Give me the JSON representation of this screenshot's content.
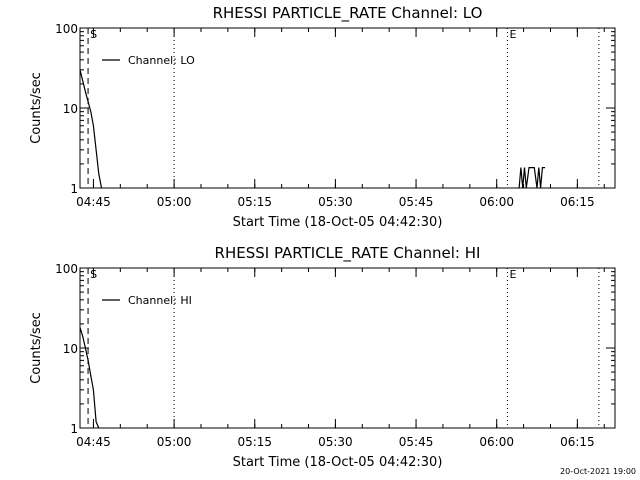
{
  "chart_data": [
    {
      "type": "line",
      "title": "RHESSI PARTICLE_RATE Channel: LO",
      "xlabel": "Start Time (18-Oct-05 04:42:30)",
      "ylabel": "Counts/sec",
      "y_scale": "log",
      "ylim": [
        1,
        100
      ],
      "xlim": [
        "04:42:30",
        "06:22:00"
      ],
      "x_ticks": [
        "04:45",
        "05:00",
        "05:15",
        "05:30",
        "05:45",
        "06:00",
        "06:15"
      ],
      "y_ticks": [
        "1",
        "10",
        "100"
      ],
      "markers": [
        {
          "label": "S",
          "time": "04:44:00",
          "style": "dashed"
        },
        {
          "label": "",
          "time": "05:00:00",
          "style": "dotted"
        },
        {
          "label": "E",
          "time": "06:02:00",
          "style": "dotted"
        },
        {
          "label": "",
          "time": "06:19:00",
          "style": "dotted"
        }
      ],
      "legend": {
        "placement": "top-left",
        "entries": [
          "Channel: LO"
        ]
      },
      "series": [
        {
          "name": "Channel: LO",
          "segments": [
            [
              [
                "04:42:30",
                30
              ],
              [
                "04:43:00",
                22
              ],
              [
                "04:43:30",
                16
              ],
              [
                "04:44:00",
                12
              ],
              [
                "04:44:30",
                9
              ],
              [
                "04:45:00",
                6
              ],
              [
                "04:45:30",
                3
              ],
              [
                "04:46:00",
                1.5
              ],
              [
                "04:46:30",
                1
              ]
            ],
            [
              [
                "06:04:10",
                1
              ],
              [
                "06:04:30",
                1.8
              ],
              [
                "06:04:50",
                1
              ],
              [
                "06:05:10",
                1.8
              ],
              [
                "06:05:30",
                1
              ],
              [
                "06:06:00",
                1.8
              ],
              [
                "06:07:00",
                1.8
              ],
              [
                "06:07:30",
                1
              ],
              [
                "06:07:50",
                1.8
              ],
              [
                "06:08:10",
                1
              ],
              [
                "06:08:30",
                1.8
              ],
              [
                "06:09:00",
                1.8
              ]
            ]
          ]
        }
      ]
    },
    {
      "type": "line",
      "title": "RHESSI PARTICLE_RATE Channel: HI",
      "xlabel": "Start Time (18-Oct-05 04:42:30)",
      "ylabel": "Counts/sec",
      "y_scale": "log",
      "ylim": [
        1,
        100
      ],
      "xlim": [
        "04:42:30",
        "06:22:00"
      ],
      "x_ticks": [
        "04:45",
        "05:00",
        "05:15",
        "05:30",
        "05:45",
        "06:00",
        "06:15"
      ],
      "y_ticks": [
        "1",
        "10",
        "100"
      ],
      "markers": [
        {
          "label": "S",
          "time": "04:44:00",
          "style": "dashed"
        },
        {
          "label": "",
          "time": "05:00:00",
          "style": "dotted"
        },
        {
          "label": "E",
          "time": "06:02:00",
          "style": "dotted"
        },
        {
          "label": "",
          "time": "06:19:00",
          "style": "dotted"
        }
      ],
      "legend": {
        "placement": "top-left",
        "entries": [
          "Channel: HI"
        ]
      },
      "series": [
        {
          "name": "Channel: HI",
          "segments": [
            [
              [
                "04:42:30",
                18
              ],
              [
                "04:43:00",
                14
              ],
              [
                "04:43:30",
                10
              ],
              [
                "04:44:00",
                7
              ],
              [
                "04:44:30",
                4.5
              ],
              [
                "04:45:00",
                3
              ],
              [
                "04:45:30",
                1.2
              ],
              [
                "04:46:00",
                1
              ]
            ]
          ]
        }
      ]
    }
  ],
  "footer": {
    "timestamp": "20-Oct-2021 19:00"
  }
}
